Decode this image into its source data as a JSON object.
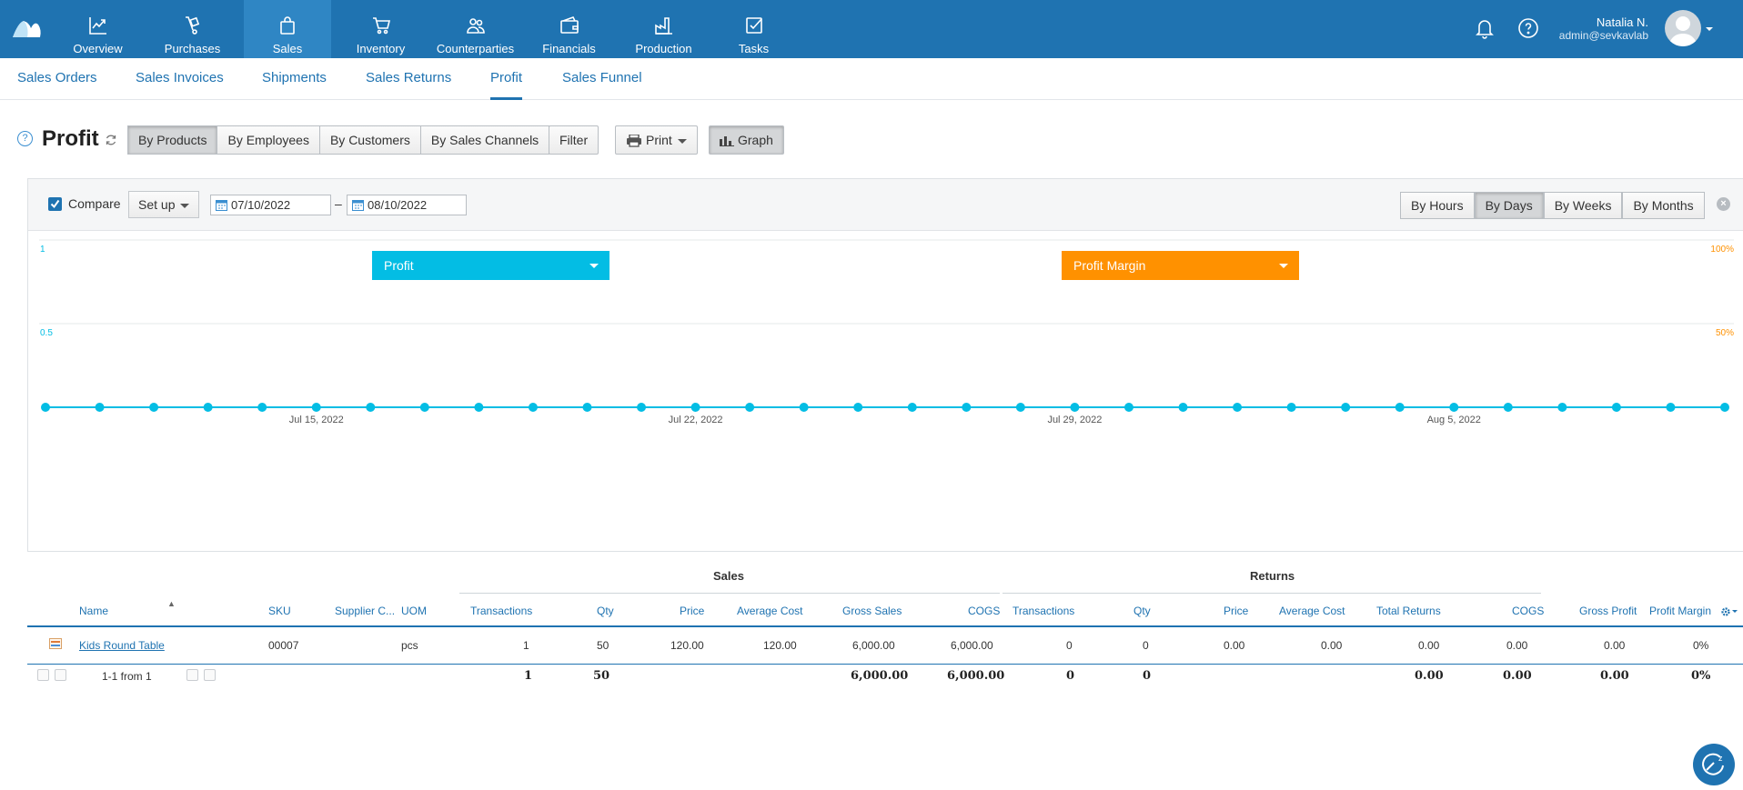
{
  "nav": {
    "items": [
      {
        "label": "Overview",
        "icon": "chart-line-icon"
      },
      {
        "label": "Purchases",
        "icon": "hand-truck-icon"
      },
      {
        "label": "Sales",
        "icon": "shopping-bag-icon"
      },
      {
        "label": "Inventory",
        "icon": "cart-icon"
      },
      {
        "label": "Counterparties",
        "icon": "people-icon"
      },
      {
        "label": "Financials",
        "icon": "wallet-icon"
      },
      {
        "label": "Production",
        "icon": "factory-icon"
      },
      {
        "label": "Tasks",
        "icon": "checkbox-icon"
      }
    ],
    "active": "Sales"
  },
  "user": {
    "name": "Natalia N.",
    "email": "admin@sevkavlab"
  },
  "subnav": {
    "items": [
      "Sales Orders",
      "Sales Invoices",
      "Shipments",
      "Sales Returns",
      "Profit",
      "Sales Funnel"
    ],
    "active": "Profit"
  },
  "page": {
    "title": "Profit",
    "help": "?"
  },
  "toolbar": {
    "views": [
      "By Products",
      "By Employees",
      "By Customers",
      "By Sales Channels"
    ],
    "active_view": "By Products",
    "filter": "Filter",
    "print": "Print",
    "graph": "Graph"
  },
  "chart_panel": {
    "compare_label": "Compare",
    "compare_checked": true,
    "setup": "Set up",
    "date_from": "07/10/2022",
    "date_sep": "–",
    "date_to": "08/10/2022",
    "periods": [
      "By Hours",
      "By Days",
      "By Weeks",
      "By Months"
    ],
    "active_period": "By Days",
    "close": "×",
    "left_metric": "Profit",
    "right_metric": "Profit Margin",
    "colors": {
      "profit": "#03bde4",
      "margin": "#ff9100"
    }
  },
  "chart_data": {
    "type": "line",
    "left_axis": {
      "ticks": [
        "1",
        "0.5"
      ],
      "ylim": [
        0,
        1
      ]
    },
    "right_axis": {
      "ticks": [
        "100%",
        "50%"
      ],
      "ylim": [
        0,
        100
      ]
    },
    "x_tick_labels": [
      "Jul 15, 2022",
      "Jul 22, 2022",
      "Jul 29, 2022",
      "Aug 5, 2022"
    ],
    "x": [
      "2022-07-10",
      "2022-07-11",
      "2022-07-12",
      "2022-07-13",
      "2022-07-14",
      "2022-07-15",
      "2022-07-16",
      "2022-07-17",
      "2022-07-18",
      "2022-07-19",
      "2022-07-20",
      "2022-07-21",
      "2022-07-22",
      "2022-07-23",
      "2022-07-24",
      "2022-07-25",
      "2022-07-26",
      "2022-07-27",
      "2022-07-28",
      "2022-07-29",
      "2022-07-30",
      "2022-07-31",
      "2022-08-01",
      "2022-08-02",
      "2022-08-03",
      "2022-08-04",
      "2022-08-05",
      "2022-08-06",
      "2022-08-07",
      "2022-08-08",
      "2022-08-09",
      "2022-08-10"
    ],
    "series": [
      {
        "name": "Profit",
        "values": [
          0,
          0,
          0,
          0,
          0,
          0,
          0,
          0,
          0,
          0,
          0,
          0,
          0,
          0,
          0,
          0,
          0,
          0,
          0,
          0,
          0,
          0,
          0,
          0,
          0,
          0,
          0,
          0,
          0,
          0,
          0,
          0
        ]
      }
    ],
    "grid": true
  },
  "table": {
    "groups": {
      "sales": "Sales",
      "returns": "Returns"
    },
    "sort_indicator": "▲",
    "headers": [
      "Name",
      "SKU",
      "Supplier C...",
      "UOM",
      "Transactions",
      "Qty",
      "Price",
      "Average Cost",
      "Gross Sales",
      "COGS",
      "Transactions",
      "Qty",
      "Price",
      "Average Cost",
      "Total Returns",
      "COGS",
      "Gross Profit",
      "Profit Margin"
    ],
    "rows": [
      [
        "Kids Round Table",
        "00007",
        "",
        "pcs",
        "1",
        "50",
        "120.00",
        "120.00",
        "6,000.00",
        "6,000.00",
        "0",
        "0",
        "0.00",
        "0.00",
        "0.00",
        "0.00",
        "0.00",
        "0%"
      ]
    ],
    "totals": {
      "transactions": "1",
      "qty": "50",
      "gross_sales": "6,000.00",
      "cogs": "6,000.00",
      "r_transactions": "0",
      "r_qty": "0",
      "total_returns": "0.00",
      "r_cogs": "0.00",
      "gross_profit": "0.00",
      "profit_margin": "0%"
    },
    "pagination": "1-1 from 1"
  }
}
